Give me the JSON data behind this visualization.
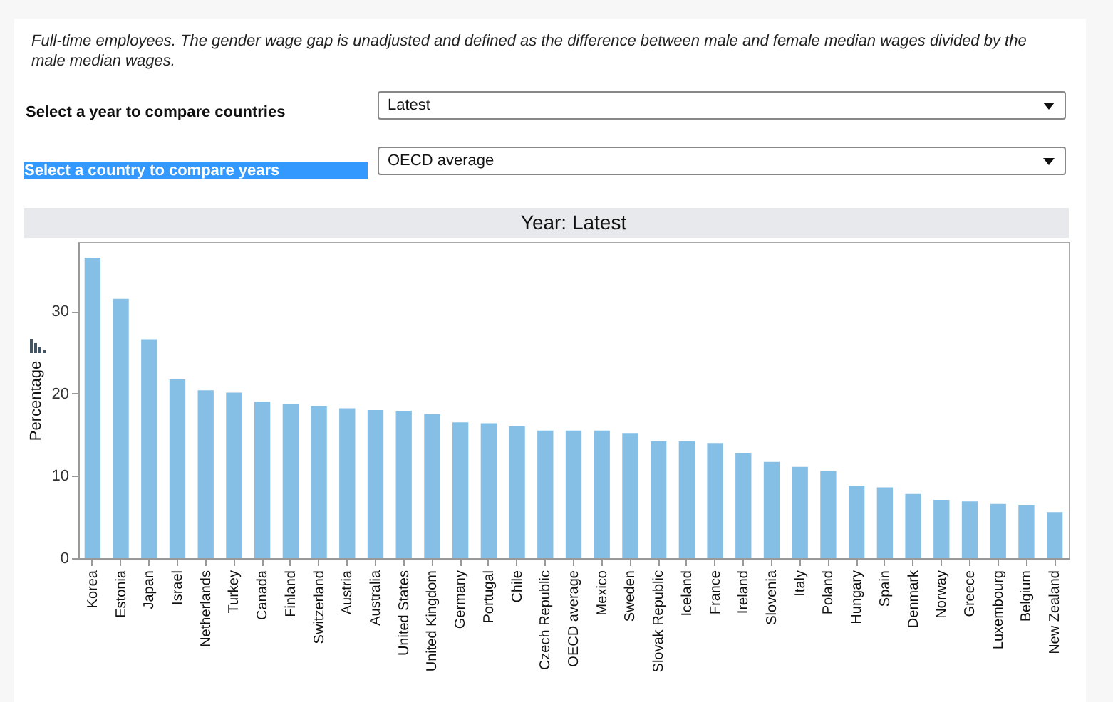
{
  "chart_data": {
    "type": "bar",
    "title": "Year: Latest",
    "ylabel": "Percentage",
    "categories": [
      "Korea",
      "Estonia",
      "Japan",
      "Israel",
      "Netherlands",
      "Turkey",
      "Canada",
      "Finland",
      "Switzerland",
      "Austria",
      "Australia",
      "United States",
      "United Kingdom",
      "Germany",
      "Portugal",
      "Chile",
      "Czech Republic",
      "OECD average",
      "Mexico",
      "Sweden",
      "Slovak Republic",
      "Iceland",
      "France",
      "Ireland",
      "Slovenia",
      "Italy",
      "Poland",
      "Hungary",
      "Spain",
      "Denmark",
      "Norway",
      "Greece",
      "Luxembourg",
      "Belgium",
      "New Zealand"
    ],
    "values": [
      36.5,
      31.5,
      26.6,
      21.7,
      20.4,
      20.1,
      19.0,
      18.7,
      18.5,
      18.2,
      18.0,
      17.9,
      17.5,
      16.5,
      16.4,
      16.0,
      15.5,
      15.5,
      15.5,
      15.2,
      14.2,
      14.2,
      14.0,
      12.8,
      11.7,
      11.1,
      10.6,
      8.8,
      8.6,
      7.8,
      7.1,
      6.9,
      6.6,
      6.4,
      5.6
    ],
    "color": "#86bfe6",
    "ylim": [
      0,
      38.4
    ],
    "yticks": [
      0,
      10,
      20,
      30
    ],
    "annotations": [
      "Full-time employees. The gender wage gap is unadjusted and defined as the difference between male and female median wages divided by the male median wages.",
      "Select a year to compare countries",
      "Latest",
      "Select a country to compare years",
      "OECD average"
    ]
  }
}
